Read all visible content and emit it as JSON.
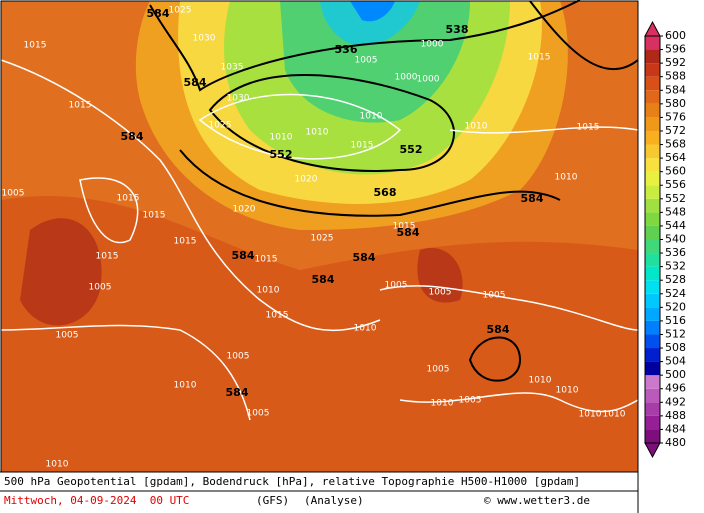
{
  "map": {
    "geopotential_labels": [
      "584",
      "536",
      "538",
      "584",
      "584",
      "552",
      "552",
      "568",
      "584",
      "584",
      "584",
      "584",
      "584",
      "584",
      "584"
    ],
    "isobar_labels": [
      "1015",
      "1015",
      "1005",
      "1015",
      "1015",
      "1005",
      "1005",
      "1015",
      "1005",
      "1005",
      "1010",
      "1010",
      "1010",
      "1015",
      "1010",
      "1005",
      "1005",
      "1005",
      "1005",
      "1005",
      "1010",
      "1010",
      "1010",
      "1010",
      "1010",
      "1015",
      "1010",
      "1015",
      "1000",
      "1000",
      "1000",
      "1005",
      "1010",
      "1010",
      "1010",
      "1015",
      "1020",
      "1025",
      "1030",
      "1035",
      "1030",
      "1025",
      "1015",
      "1020",
      "1025",
      "1015",
      "1015",
      "1010"
    ]
  },
  "colorbar": {
    "levels": [
      480,
      484,
      488,
      492,
      496,
      500,
      504,
      508,
      512,
      516,
      520,
      524,
      528,
      532,
      536,
      540,
      544,
      548,
      552,
      556,
      560,
      564,
      568,
      572,
      576,
      580,
      584,
      588,
      592,
      596,
      600
    ],
    "colors": [
      "#7d0f7d",
      "#961e96",
      "#a83ca8",
      "#bb5abb",
      "#cc78cc",
      "#0000a0",
      "#0020d0",
      "#0050f0",
      "#0080ff",
      "#00a8ff",
      "#00c8ff",
      "#00e0f0",
      "#00e8c8",
      "#20e0a0",
      "#40d878",
      "#60d050",
      "#80d840",
      "#a0e040",
      "#c8ec40",
      "#e8f040",
      "#f8e040",
      "#f8c830",
      "#f8b020",
      "#f09818",
      "#e88018",
      "#e06818",
      "#d85018",
      "#c83818",
      "#b02818",
      "#d83060"
    ]
  },
  "footer": {
    "description": "500 hPa Geopotential [gpdam], Bodendruck [hPa], relative Topographie H500-H1000 [gpdam]",
    "date": "Mittwoch, 04-09-2024  00 UTC",
    "model": "(GFS)",
    "run_type": "(Analyse)",
    "credit": "© www.wetter3.de"
  }
}
